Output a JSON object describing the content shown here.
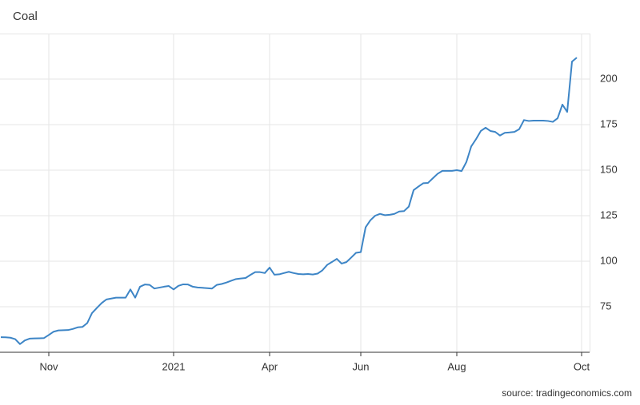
{
  "chart_data": {
    "type": "line",
    "title": "Coal",
    "source": "source: tradingeconomics.com",
    "categories": [
      null,
      null,
      null,
      null,
      null,
      null,
      null,
      null,
      null,
      null,
      "Nov",
      null,
      null,
      null,
      null,
      null,
      null,
      null,
      null,
      null,
      null,
      null,
      null,
      null,
      null,
      null,
      null,
      null,
      null,
      null,
      null,
      null,
      null,
      null,
      null,
      null,
      "2021",
      null,
      null,
      null,
      null,
      null,
      null,
      null,
      null,
      null,
      null,
      null,
      null,
      null,
      null,
      null,
      null,
      null,
      null,
      null,
      "Apr",
      null,
      null,
      null,
      null,
      null,
      null,
      null,
      null,
      null,
      null,
      null,
      null,
      null,
      null,
      null,
      null,
      null,
      null,
      "Jun",
      null,
      null,
      null,
      null,
      null,
      null,
      null,
      null,
      null,
      null,
      null,
      null,
      null,
      null,
      null,
      null,
      null,
      null,
      null,
      "Aug",
      null,
      null,
      null,
      null,
      null,
      null,
      null,
      null,
      null,
      null,
      null,
      null,
      null,
      null,
      null,
      null,
      null,
      null,
      null,
      null,
      null,
      null,
      null,
      null,
      null,
      "Oct"
    ],
    "values": [
      58.3,
      58.2,
      58,
      57.2,
      54.5,
      56.5,
      57.5,
      57.6,
      57.7,
      57.8,
      59.5,
      61.3,
      62,
      62.1,
      62.2,
      62.8,
      63.7,
      63.9,
      66,
      71.5,
      74.3,
      77,
      79,
      79.5,
      80,
      80,
      80,
      84.5,
      80,
      86,
      87.2,
      87,
      85,
      85.5,
      86,
      86.4,
      84.5,
      86.5,
      87.3,
      87.2,
      86,
      85.6,
      85.4,
      85.2,
      85,
      87,
      87.5,
      88.3,
      89.3,
      90.2,
      90.5,
      90.8,
      92.5,
      94,
      94,
      93.5,
      96.5,
      92.6,
      92.8,
      93.5,
      94.2,
      93.5,
      93,
      92.8,
      93,
      92.7,
      93.2,
      95,
      98,
      99.6,
      101.3,
      98.7,
      99.5,
      102,
      104.6,
      105,
      118.6,
      122.5,
      125,
      126,
      125.3,
      125.5,
      126,
      127.3,
      127.5,
      130,
      139,
      141,
      142.8,
      143,
      145.5,
      148,
      149.6,
      149.6,
      149.6,
      150,
      149.5,
      154.5,
      163,
      167,
      171.5,
      173.3,
      171.5,
      171,
      169,
      170.5,
      170.7,
      171,
      172.5,
      177.5,
      177,
      177.2,
      177.2,
      177.2,
      177,
      176.5,
      178.5,
      186,
      182,
      209.6,
      211.8,
      null
    ],
    "color": "#3d85c6",
    "ylim": [
      50,
      225
    ],
    "yticks": [
      75,
      100,
      125,
      150,
      175,
      200
    ],
    "grid": true
  }
}
